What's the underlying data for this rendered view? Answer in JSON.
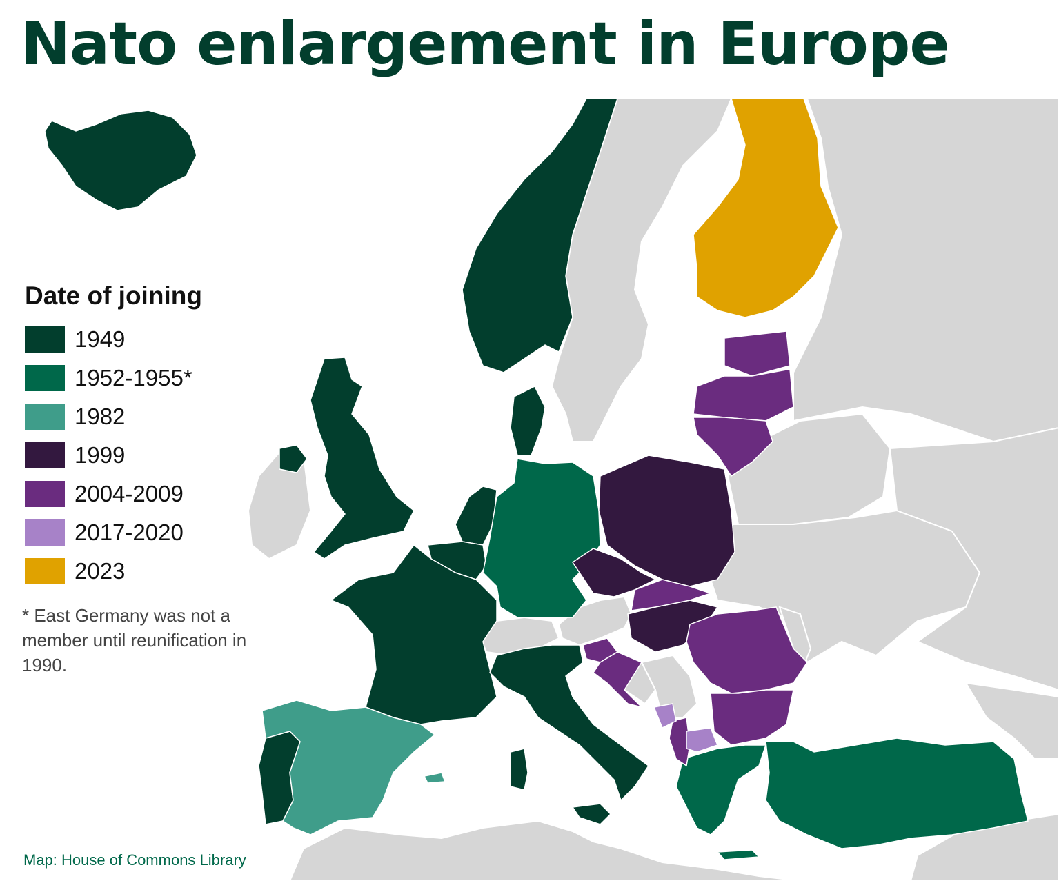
{
  "title": "Nato enlargement in Europe",
  "legend": {
    "title": "Date of joining",
    "items": [
      {
        "label": "1949",
        "color": "#023e2d"
      },
      {
        "label": "1952-1955*",
        "color": "#00684a"
      },
      {
        "label": "1982",
        "color": "#3f9d8a"
      },
      {
        "label": "1999",
        "color": "#33183f"
      },
      {
        "label": "2004-2009",
        "color": "#6a2c7f"
      },
      {
        "label": "2017-2020",
        "color": "#a782c8"
      },
      {
        "label": "2023",
        "color": "#e0a200"
      }
    ]
  },
  "footnote": "* East Germany was not a member until reunification in 1990.",
  "credit": "Map: House of Commons Library",
  "colors": {
    "non_member": "#d6d6d6",
    "sea": "#ffffff",
    "border": "#ffffff"
  }
}
